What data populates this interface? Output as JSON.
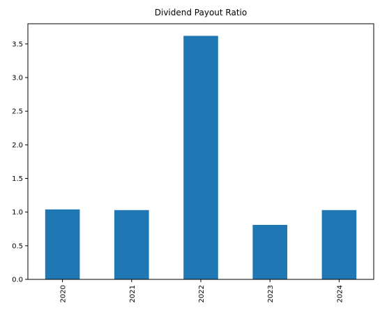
{
  "chart_data": {
    "type": "bar",
    "title": "Dividend Payout Ratio",
    "xlabel": "",
    "ylabel": "",
    "categories": [
      "2020",
      "2021",
      "2022",
      "2023",
      "2024"
    ],
    "values": [
      1.04,
      1.03,
      3.62,
      0.81,
      1.03
    ],
    "ylim": [
      0,
      3.8
    ],
    "yticks": [
      "0.0",
      "0.5",
      "1.0",
      "1.5",
      "2.0",
      "2.5",
      "3.0",
      "3.5"
    ],
    "bar_color": "#1f77b4",
    "grid": false,
    "legend": "none"
  }
}
